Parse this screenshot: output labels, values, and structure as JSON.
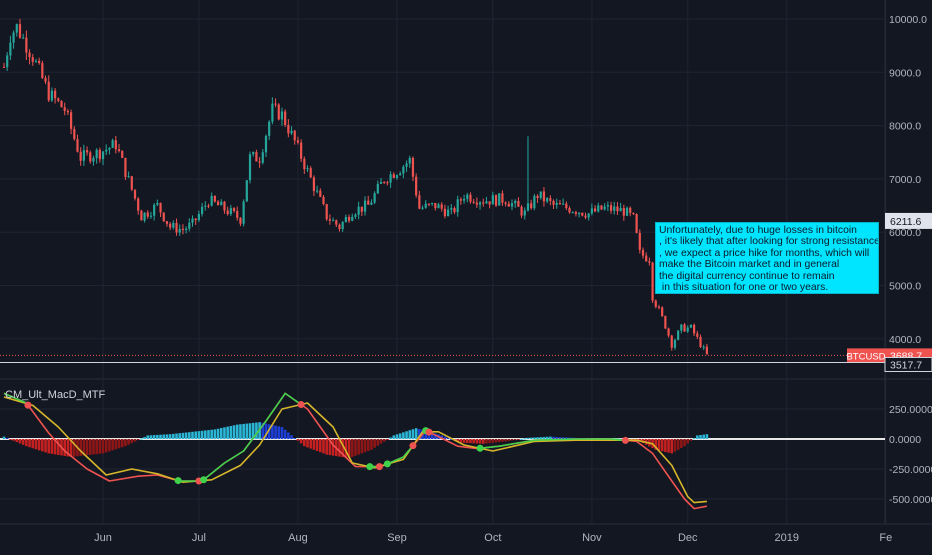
{
  "symbol": "BTCUSD",
  "last_price": "3688.7",
  "low_marker": "3517.7",
  "highlight_price": "6211.6",
  "colors": {
    "background": "#131722",
    "up": "#26a69a",
    "down": "#ef5350",
    "grid": "#1f2433",
    "macd_line": "#d6b62a",
    "signal_line": "#3fd24b",
    "last_price_tag": "#ef5350",
    "annotation_bg": "#00e5ff"
  },
  "annotation": {
    "text": "Unfortunately, due to huge losses in bitcoin\n, it's likely that after looking for strong resistance\n, we expect a price hike for months, which will\nmake the Bitcoin market and in general\nthe digital currency continue to remain\n in this situation for one or two years."
  },
  "indicator": {
    "name": "CM_Ult_MacD_MTF"
  },
  "chart_data": [
    {
      "type": "candlestick",
      "series_name": "BTCUSD",
      "y_axis": {
        "ticks": [
          10000,
          9000,
          8000,
          7000,
          6000,
          5000,
          4000
        ],
        "tick_labels": [
          "10000.0",
          "9000.0",
          "8000.0",
          "7000.0",
          "6000.0",
          "5000.0",
          "4000.0"
        ],
        "range": [
          3400,
          10350
        ]
      },
      "x_axis": {
        "labels": [
          "Jun",
          "Jul",
          "Aug",
          "Sep",
          "Oct",
          "Nov",
          "Dec",
          "2019",
          "Fe"
        ]
      },
      "close_path": [
        [
          "2018-05-01",
          9100
        ],
        [
          "2018-05-03",
          9700
        ],
        [
          "2018-05-05",
          9850
        ],
        [
          "2018-05-10",
          9300
        ],
        [
          "2018-05-15",
          8600
        ],
        [
          "2018-05-20",
          8300
        ],
        [
          "2018-05-25",
          7400
        ],
        [
          "2018-05-31",
          7500
        ],
        [
          "2018-06-05",
          7650
        ],
        [
          "2018-06-10",
          6800
        ],
        [
          "2018-06-13",
          6300
        ],
        [
          "2018-06-18",
          6500
        ],
        [
          "2018-06-22",
          6100
        ],
        [
          "2018-06-26",
          6050
        ],
        [
          "2018-06-29",
          6150
        ],
        [
          "2018-07-04",
          6600
        ],
        [
          "2018-07-10",
          6400
        ],
        [
          "2018-07-14",
          6250
        ],
        [
          "2018-07-17",
          7400
        ],
        [
          "2018-07-20",
          7400
        ],
        [
          "2018-07-24",
          8300
        ],
        [
          "2018-07-27",
          8200
        ],
        [
          "2018-07-31",
          7700
        ],
        [
          "2018-08-05",
          7000
        ],
        [
          "2018-08-10",
          6300
        ],
        [
          "2018-08-14",
          6100
        ],
        [
          "2018-08-18",
          6400
        ],
        [
          "2018-08-23",
          6500
        ],
        [
          "2018-08-28",
          7000
        ],
        [
          "2018-09-02",
          7200
        ],
        [
          "2018-09-05",
          7350
        ],
        [
          "2018-09-08",
          6450
        ],
        [
          "2018-09-13",
          6500
        ],
        [
          "2018-09-18",
          6350
        ],
        [
          "2018-09-22",
          6700
        ],
        [
          "2018-09-28",
          6600
        ],
        [
          "2018-10-05",
          6620
        ],
        [
          "2018-10-11",
          6350
        ],
        [
          "2018-10-15",
          6700
        ],
        [
          "2018-10-20",
          6500
        ],
        [
          "2018-10-25",
          6450
        ],
        [
          "2018-10-31",
          6350
        ],
        [
          "2018-11-05",
          6450
        ],
        [
          "2018-11-11",
          6400
        ],
        [
          "2018-11-14",
          6250
        ],
        [
          "2018-11-16",
          5600
        ],
        [
          "2018-11-19",
          5500
        ],
        [
          "2018-11-20",
          4800
        ],
        [
          "2018-11-24",
          4250
        ],
        [
          "2018-11-26",
          3900
        ],
        [
          "2018-11-29",
          4200
        ],
        [
          "2018-12-02",
          4200
        ],
        [
          "2018-12-05",
          3900
        ],
        [
          "2018-12-07",
          3688.7
        ]
      ]
    },
    {
      "type": "line+histogram",
      "name": "CM_Ult_MacD_MTF",
      "y_axis": {
        "ticks": [
          250,
          0,
          -250,
          -500
        ],
        "tick_labels": [
          "250.0000",
          "0.0000",
          "-250.0000",
          "-500.0000"
        ],
        "range": [
          -560,
          420
        ]
      },
      "series": [
        {
          "role": "macd",
          "points": [
            [
              "2018-05-01",
              380
            ],
            [
              "2018-05-08",
              300
            ],
            [
              "2018-05-15",
              50
            ],
            [
              "2018-05-20",
              -100
            ],
            [
              "2018-05-27",
              -250
            ],
            [
              "2018-06-03",
              -350
            ],
            [
              "2018-06-12",
              -310
            ],
            [
              "2018-06-18",
              -300
            ],
            [
              "2018-06-25",
              -350
            ],
            [
              "2018-07-02",
              -350
            ],
            [
              "2018-07-09",
              -200
            ],
            [
              "2018-07-15",
              -100
            ],
            [
              "2018-07-22",
              150
            ],
            [
              "2018-07-28",
              380
            ],
            [
              "2018-08-04",
              250
            ],
            [
              "2018-08-12",
              -50
            ],
            [
              "2018-08-19",
              -230
            ],
            [
              "2018-08-27",
              -230
            ],
            [
              "2018-09-03",
              -150
            ],
            [
              "2018-09-10",
              70
            ],
            [
              "2018-09-14",
              20
            ],
            [
              "2018-09-20",
              -60
            ],
            [
              "2018-09-26",
              -80
            ],
            [
              "2018-10-03",
              -60
            ],
            [
              "2018-10-14",
              -10
            ],
            [
              "2018-10-27",
              0
            ],
            [
              "2018-11-07",
              0
            ],
            [
              "2018-11-15",
              -20
            ],
            [
              "2018-11-20",
              -120
            ],
            [
              "2018-11-26",
              -350
            ],
            [
              "2018-11-30",
              -500
            ],
            [
              "2018-12-03",
              -580
            ],
            [
              "2018-12-07",
              -560
            ]
          ]
        },
        {
          "role": "signal",
          "points": [
            [
              "2018-05-01",
              350
            ],
            [
              "2018-05-10",
              280
            ],
            [
              "2018-05-18",
              100
            ],
            [
              "2018-05-25",
              -100
            ],
            [
              "2018-06-02",
              -300
            ],
            [
              "2018-06-10",
              -250
            ],
            [
              "2018-06-18",
              -290
            ],
            [
              "2018-06-26",
              -360
            ],
            [
              "2018-07-05",
              -340
            ],
            [
              "2018-07-14",
              -220
            ],
            [
              "2018-07-20",
              -50
            ],
            [
              "2018-07-27",
              250
            ],
            [
              "2018-08-04",
              300
            ],
            [
              "2018-08-12",
              100
            ],
            [
              "2018-08-18",
              -200
            ],
            [
              "2018-08-25",
              -240
            ],
            [
              "2018-09-03",
              -170
            ],
            [
              "2018-09-09",
              60
            ],
            [
              "2018-09-14",
              60
            ],
            [
              "2018-09-22",
              -50
            ],
            [
              "2018-10-01",
              -100
            ],
            [
              "2018-10-14",
              -20
            ],
            [
              "2018-10-27",
              -10
            ],
            [
              "2018-11-08",
              -10
            ],
            [
              "2018-11-15",
              -10
            ],
            [
              "2018-11-20",
              -40
            ],
            [
              "2018-11-26",
              -220
            ],
            [
              "2018-12-01",
              -480
            ],
            [
              "2018-12-03",
              -530
            ],
            [
              "2018-12-07",
              -520
            ]
          ]
        }
      ],
      "histogram": [
        [
          "2018-05-01",
          20
        ],
        [
          "2018-05-08",
          -60
        ],
        [
          "2018-05-15",
          -120
        ],
        [
          "2018-05-22",
          -150
        ],
        [
          "2018-06-01",
          -120
        ],
        [
          "2018-06-08",
          -60
        ],
        [
          "2018-06-15",
          30
        ],
        [
          "2018-06-22",
          40
        ],
        [
          "2018-06-29",
          60
        ],
        [
          "2018-07-06",
          80
        ],
        [
          "2018-07-13",
          120
        ],
        [
          "2018-07-20",
          140
        ],
        [
          "2018-07-27",
          100
        ],
        [
          "2018-08-03",
          -60
        ],
        [
          "2018-08-10",
          -130
        ],
        [
          "2018-08-17",
          -160
        ],
        [
          "2018-08-24",
          -90
        ],
        [
          "2018-08-31",
          30
        ],
        [
          "2018-09-07",
          90
        ],
        [
          "2018-09-14",
          40
        ],
        [
          "2018-09-21",
          -30
        ],
        [
          "2018-09-28",
          -40
        ],
        [
          "2018-10-05",
          -20
        ],
        [
          "2018-10-12",
          10
        ],
        [
          "2018-10-19",
          20
        ],
        [
          "2018-10-26",
          10
        ],
        [
          "2018-11-02",
          5
        ],
        [
          "2018-11-09",
          5
        ],
        [
          "2018-11-16",
          -20
        ],
        [
          "2018-11-21",
          -90
        ],
        [
          "2018-11-26",
          -120
        ],
        [
          "2018-11-30",
          -60
        ],
        [
          "2018-12-04",
          30
        ],
        [
          "2018-12-07",
          40
        ]
      ]
    }
  ]
}
